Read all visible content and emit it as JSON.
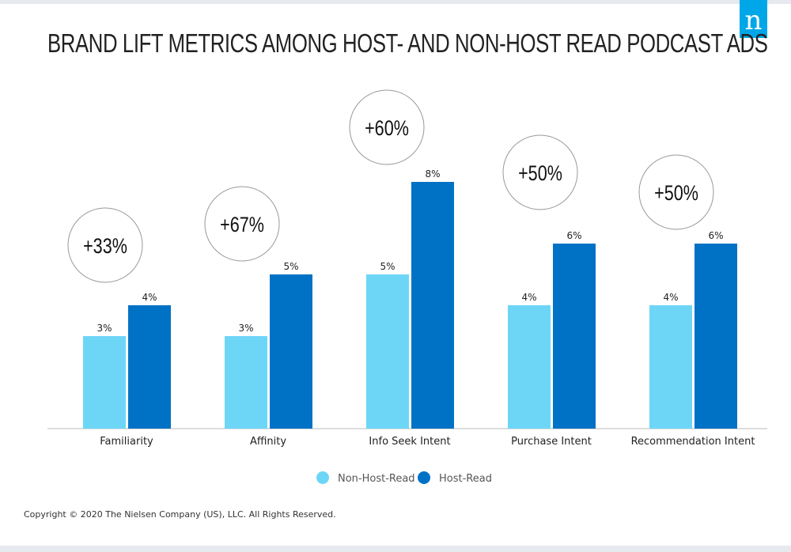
{
  "title": "BRAND LIFT METRICS AMONG HOST- AND NON-HOST READ PODCAST ADS",
  "logo": "n",
  "copyright": "Copyright © 2020 The Nielsen Company (US), LLC. All Rights Reserved.",
  "chart_data": {
    "type": "bar",
    "categories": [
      "Familiarity",
      "Affinity",
      "Info Seek Intent",
      "Purchase Intent",
      "Recommendation Intent"
    ],
    "series": [
      {
        "name": "Non-Host-Read",
        "values": [
          3,
          3,
          5,
          4,
          4
        ],
        "labels": [
          "3%",
          "3%",
          "5%",
          "4%",
          "4%"
        ],
        "color": "#6dd6f7"
      },
      {
        "name": "Host-Read",
        "values": [
          4,
          5,
          8,
          6,
          6
        ],
        "labels": [
          "4%",
          "5%",
          "8%",
          "6%",
          "6%"
        ],
        "color": "#0072c6"
      }
    ],
    "annotations": [
      "+33%",
      "+67%",
      "+60%",
      "+50%",
      "+50%"
    ],
    "ylim": [
      0,
      8
    ],
    "grid": false,
    "legend": "bottom"
  }
}
